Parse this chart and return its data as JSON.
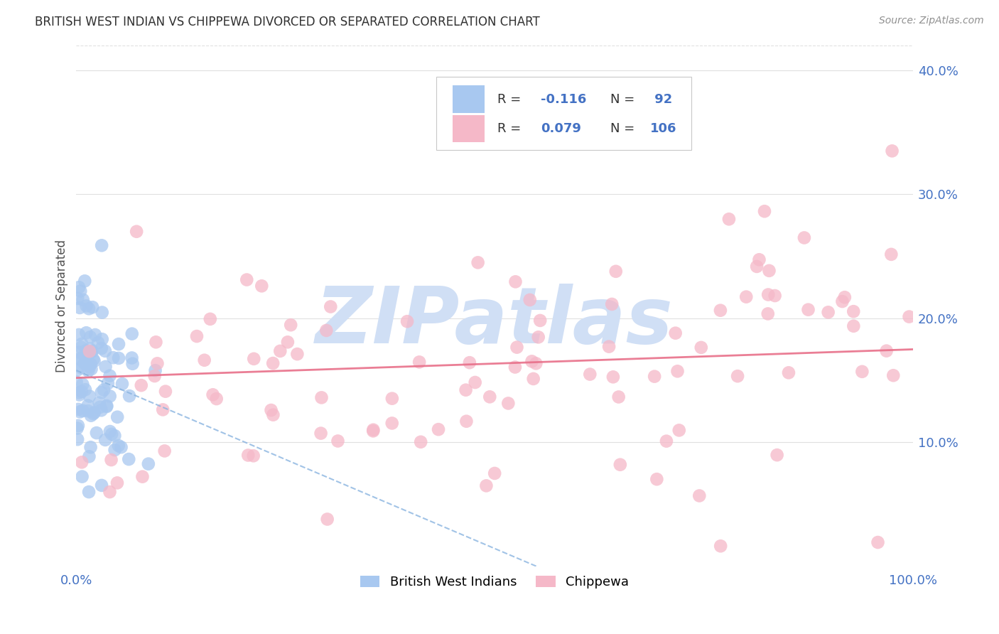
{
  "title": "BRITISH WEST INDIAN VS CHIPPEWA DIVORCED OR SEPARATED CORRELATION CHART",
  "source": "Source: ZipAtlas.com",
  "ylabel": "Divorced or Separated",
  "watermark": "ZIPatlas",
  "blue_R": -0.116,
  "blue_N": 92,
  "pink_R": 0.079,
  "pink_N": 106,
  "blue_color": "#a8c8f0",
  "pink_color": "#f5b8c8",
  "blue_line_color": "#8ab4e0",
  "pink_line_color": "#e8708a",
  "x_min": 0.0,
  "x_max": 1.0,
  "y_min": 0.0,
  "y_max": 0.42,
  "y_ticks": [
    0.1,
    0.2,
    0.3,
    0.4
  ],
  "y_tick_labels": [
    "10.0%",
    "20.0%",
    "30.0%",
    "40.0%"
  ],
  "grid_color": "#e0e0e0",
  "background_color": "#ffffff",
  "title_color": "#303030",
  "axis_label_color": "#505050",
  "tick_color": "#4472c4",
  "watermark_color": "#d0dff5",
  "blue_seed": 12,
  "pink_seed": 99,
  "blue_trend_x0": 0.0,
  "blue_trend_y0": 0.158,
  "blue_trend_x1": 0.55,
  "blue_trend_y1": 0.0,
  "pink_trend_x0": 0.0,
  "pink_trend_y0": 0.152,
  "pink_trend_x1": 1.0,
  "pink_trend_y1": 0.175
}
